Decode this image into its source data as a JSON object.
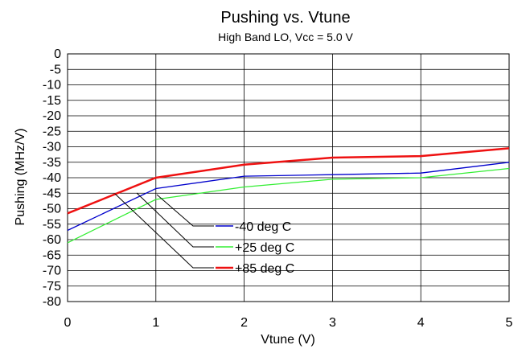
{
  "chart_data": {
    "type": "line",
    "title": "Pushing vs. Vtune",
    "subtitle": "High Band LO, Vcc = 5.0 V",
    "xlabel": "Vtune (V)",
    "ylabel": "Pushing (MHz/V)",
    "xlim": [
      0,
      5
    ],
    "ylim": [
      -80,
      0
    ],
    "x_ticks": [
      0,
      1,
      2,
      3,
      4,
      5
    ],
    "y_ticks": [
      0,
      -5,
      -10,
      -15,
      -20,
      -25,
      -30,
      -35,
      -40,
      -45,
      -50,
      -55,
      -60,
      -65,
      -70,
      -75,
      -80
    ],
    "grid": true,
    "legend_position": "inside-center",
    "x": [
      0,
      1,
      2,
      3,
      4,
      5
    ],
    "series": [
      {
        "name": "-40 deg C",
        "color": "#0000cc",
        "values": [
          -57,
          -43.5,
          -39.5,
          -39,
          -38.5,
          -35
        ]
      },
      {
        "name": "+25 deg C",
        "color": "#33ee33",
        "values": [
          -61,
          -47,
          -43,
          -40.5,
          -40,
          -37
        ]
      },
      {
        "name": "+85 deg C",
        "color": "#ee1111",
        "values": [
          -51.5,
          -40,
          -35.8,
          -33.5,
          -33,
          -30.5
        ]
      }
    ]
  }
}
